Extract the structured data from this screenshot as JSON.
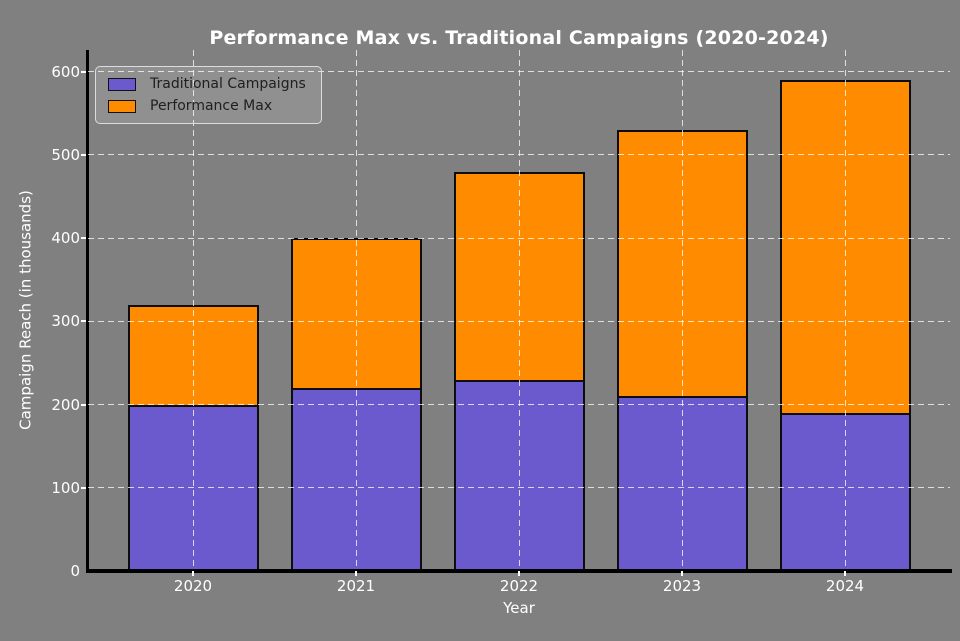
{
  "figure": {
    "background": "#808080"
  },
  "chart_data": {
    "type": "bar",
    "stacked": true,
    "title": "Performance Max vs. Traditional Campaigns (2020-2024)",
    "xlabel": "Year",
    "ylabel": "Campaign Reach (in thousands)",
    "categories": [
      "2020",
      "2021",
      "2022",
      "2023",
      "2024"
    ],
    "series": [
      {
        "name": "Traditional Campaigns",
        "color": "#6A5ACD",
        "values": [
          200,
          220,
          230,
          210,
          190
        ]
      },
      {
        "name": "Performance Max",
        "color": "#FF8C00",
        "values": [
          120,
          180,
          250,
          320,
          400
        ]
      }
    ],
    "totals": [
      320,
      400,
      480,
      530,
      590
    ],
    "yticks": [
      0,
      100,
      200,
      300,
      400,
      500,
      600
    ],
    "ylim": [
      0,
      626
    ],
    "grid": true,
    "grid_style": "dashed-white-over-bars",
    "legend_position": "upper-left",
    "text_color": "#ffffff",
    "bar_edge_color": "#000000",
    "gridline_color": "rgba(255,255,255,0.75)"
  }
}
